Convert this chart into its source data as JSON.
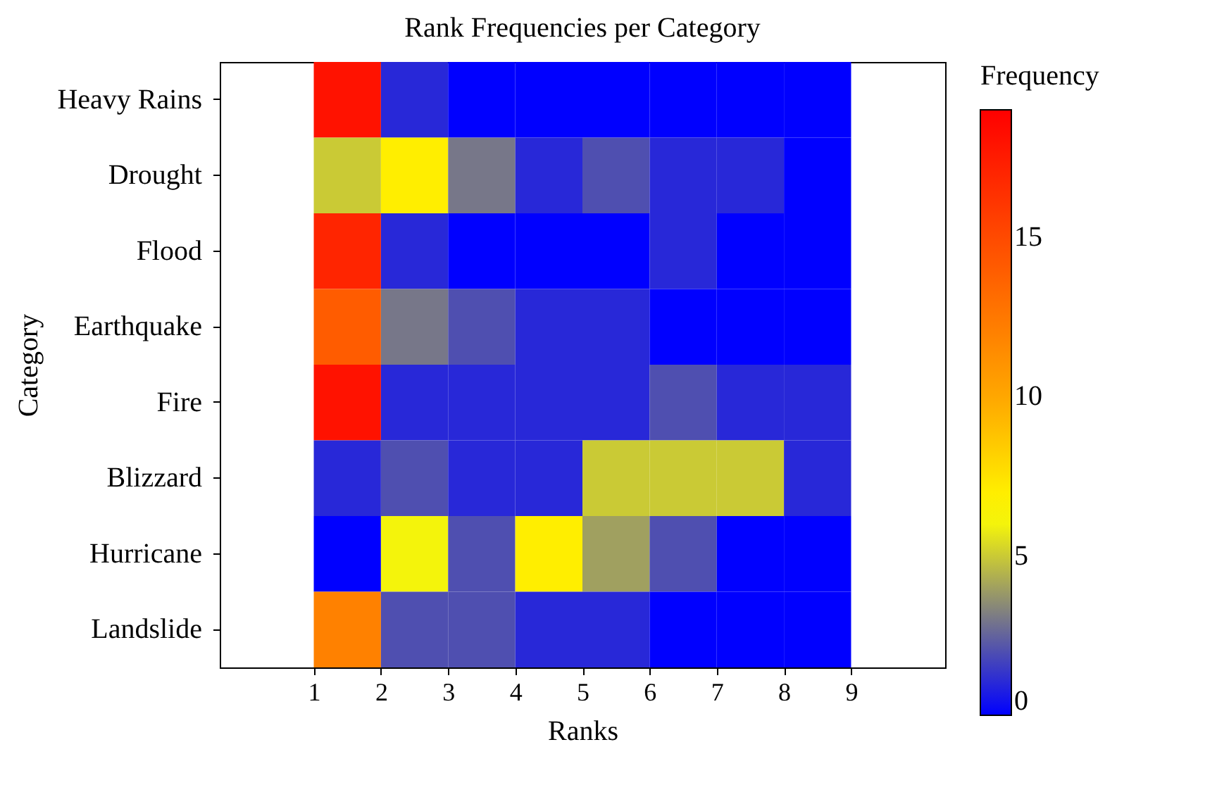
{
  "chart_data": {
    "type": "heatmap",
    "title": "Rank Frequencies per Category",
    "xlabel": "Ranks",
    "ylabel": "Category",
    "clabel": "Frequency",
    "x": [
      1.5,
      2.5,
      3.5,
      4.5,
      5.5,
      6.5,
      7.5,
      8.5
    ],
    "y_categories": [
      "Heavy Rains",
      "Drought",
      "Flood",
      "Earthquake",
      "Fire",
      "Blizzard",
      "Hurricane",
      "Landslide"
    ],
    "cells": [
      [
        18,
        1,
        0,
        0,
        0,
        0,
        0,
        0
      ],
      [
        5,
        7,
        3,
        1,
        2,
        1,
        1,
        0
      ],
      [
        17,
        1,
        0,
        0,
        0,
        1,
        0,
        0
      ],
      [
        14,
        3,
        2,
        1,
        1,
        0,
        0,
        0
      ],
      [
        18,
        1,
        1,
        1,
        1,
        2,
        1,
        1
      ],
      [
        1,
        2,
        1,
        1,
        5,
        5,
        5,
        1
      ],
      [
        0,
        6,
        2,
        7,
        4,
        2,
        0,
        0
      ],
      [
        12,
        2,
        2,
        1,
        1,
        0,
        0,
        0
      ]
    ],
    "xlim": [
      -0.4,
      10.4
    ],
    "xticks": [
      1,
      2,
      3,
      4,
      5,
      6,
      7,
      8,
      9
    ],
    "clim": [
      0,
      19
    ],
    "cticks": [
      0,
      5,
      10,
      15
    ],
    "grid": false
  }
}
